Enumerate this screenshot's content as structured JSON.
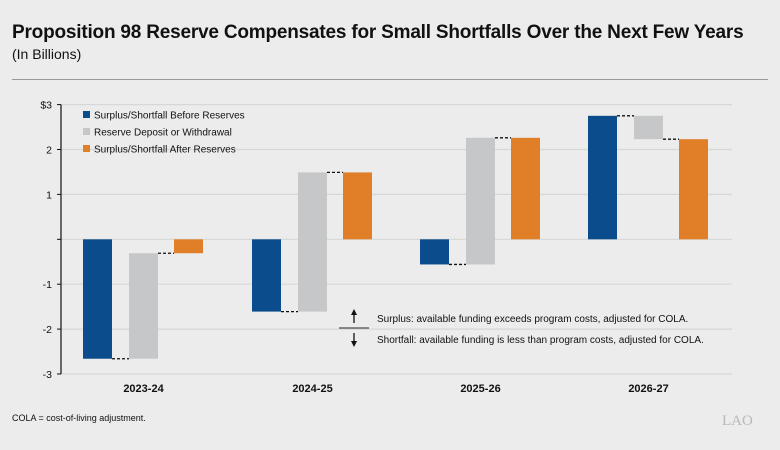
{
  "title": "Proposition 98 Reserve Compensates for Small Shortfalls Over the Next Few Years",
  "subtitle": "(In Billions)",
  "footnote": "COLA = cost-of-living adjustment.",
  "logo": "LAO",
  "annotation": {
    "surplus": "Surplus: available funding exceeds program costs, adjusted for COLA.",
    "shortfall": "Shortfall: available funding is less than program costs, adjusted for COLA."
  },
  "chart_data": {
    "type": "bar",
    "subtype": "waterfall",
    "categories": [
      "2023-24",
      "2024-25",
      "2025-26",
      "2026-27"
    ],
    "series": [
      {
        "name": "Surplus/Shortfall Before Reserves",
        "color": "#0b4d8c",
        "values": [
          -2.66,
          -1.61,
          -0.56,
          2.75
        ]
      },
      {
        "name": "Reserve Deposit or Withdrawal",
        "color": "#c6c7c8",
        "values": [
          2.35,
          3.1,
          2.82,
          -0.52
        ]
      },
      {
        "name": "Surplus/Shortfall After Reserves",
        "color": "#e07f28",
        "values": [
          -0.31,
          1.49,
          2.26,
          2.23
        ]
      }
    ],
    "ylim": [
      -3,
      3
    ],
    "yticks": [
      "$3",
      "2",
      "1",
      "",
      "-1",
      "-2",
      "-3"
    ],
    "ytick_values": [
      3,
      2,
      1,
      0,
      -1,
      -2,
      -3
    ],
    "grid": true,
    "legend": "top-left"
  }
}
